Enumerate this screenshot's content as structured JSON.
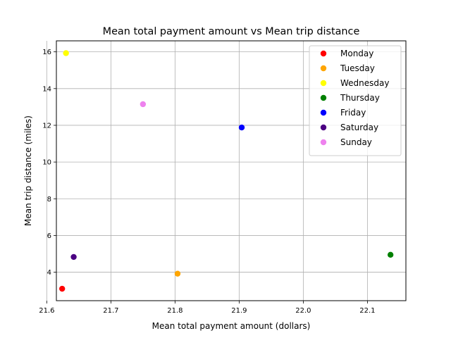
{
  "chart_data": {
    "type": "scatter",
    "title": "Mean total payment amount vs Mean trip distance",
    "xlabel": "Mean total payment amount (dollars)",
    "ylabel": "Mean trip distance (miles)",
    "xlim": [
      21.615,
      22.16
    ],
    "ylim": [
      2.45,
      16.6
    ],
    "xticks": [
      21.6,
      21.7,
      21.8,
      21.9,
      22.0,
      22.1
    ],
    "xtick_labels": [
      "21.6",
      "21.7",
      "21.8",
      "21.9",
      "22.0",
      "22.1"
    ],
    "yticks": [
      4,
      6,
      8,
      10,
      12,
      14,
      16
    ],
    "ytick_labels": [
      "4",
      "6",
      "8",
      "10",
      "12",
      "14",
      "16"
    ],
    "grid": true,
    "legend_position": "top-right",
    "series": [
      {
        "name": "Monday",
        "color": "#ff0000",
        "x": 21.624,
        "y": 3.1
      },
      {
        "name": "Tuesday",
        "color": "#ffa500",
        "x": 21.804,
        "y": 3.92
      },
      {
        "name": "Wednesday",
        "color": "#ffff00",
        "x": 21.63,
        "y": 15.93
      },
      {
        "name": "Thursday",
        "color": "#008000",
        "x": 22.136,
        "y": 4.95
      },
      {
        "name": "Friday",
        "color": "#0000ff",
        "x": 21.904,
        "y": 11.88
      },
      {
        "name": "Saturday",
        "color": "#4b0082",
        "x": 21.642,
        "y": 4.83
      },
      {
        "name": "Sunday",
        "color": "#ee82ee",
        "x": 21.75,
        "y": 13.15
      }
    ]
  }
}
